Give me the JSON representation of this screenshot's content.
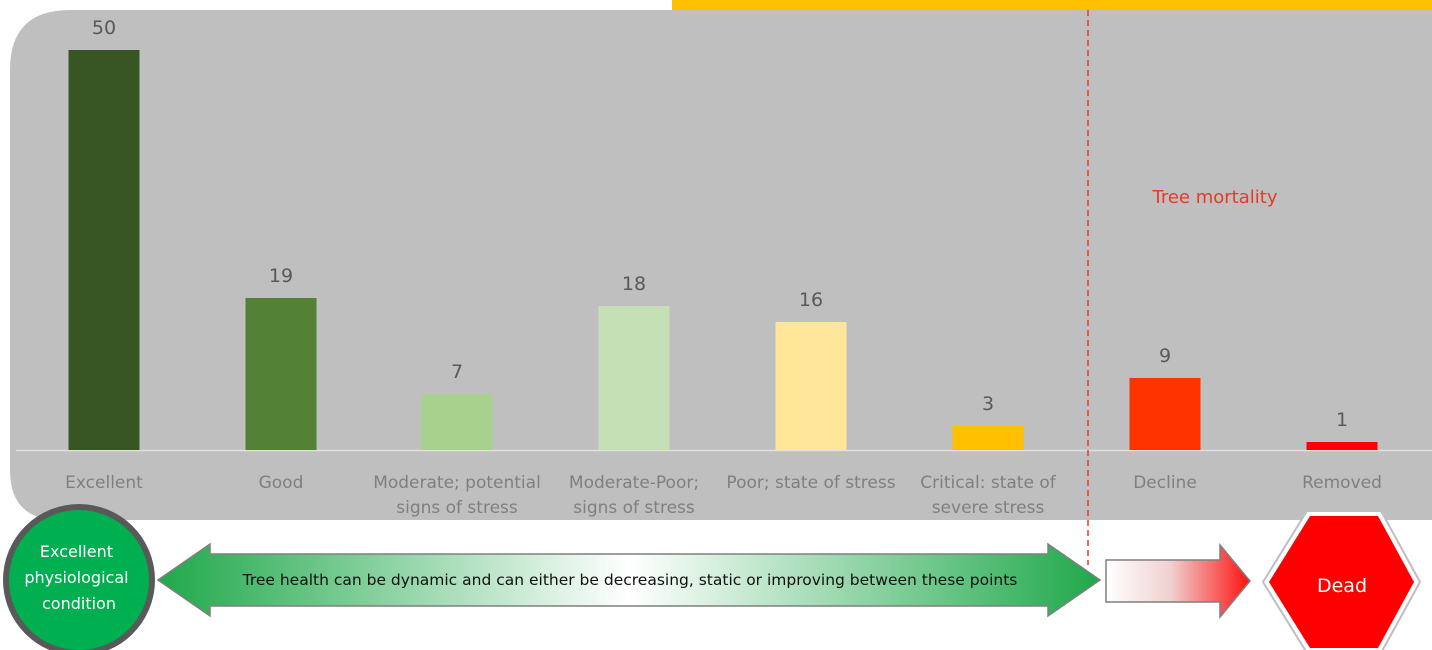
{
  "chart_data": {
    "type": "bar",
    "categories": [
      [
        "Excellent"
      ],
      [
        "Good"
      ],
      [
        "Moderate; potential",
        "signs of stress"
      ],
      [
        "Moderate-Poor;",
        "signs of stress"
      ],
      [
        "Poor; state of stress"
      ],
      [
        "Critical: state of",
        "severe stress"
      ],
      [
        "Decline"
      ],
      [
        "Removed"
      ]
    ],
    "values": [
      50,
      19,
      7,
      18,
      16,
      3,
      9,
      1
    ],
    "bar_colors": [
      "#375623",
      "#538135",
      "#a9d18e",
      "#c5e0b4",
      "#ffe699",
      "#ffc000",
      "#ff3300",
      "#ff0000"
    ],
    "ylim": [
      0,
      50
    ],
    "grid": false
  },
  "annotations": {
    "mortality_label": "Tree mortality",
    "excellent_circle": [
      "Excellent",
      "physiological",
      "condition"
    ],
    "dynamic_arrow": "Tree health can be dynamic and can either be decreasing, static or improving between these points",
    "dead_label": "Dead"
  },
  "colors": {
    "panel": "#bfbfbf",
    "banner": "#ffc000",
    "circle": "#00b050",
    "dead": "#ff0000",
    "mortality_line": "#e8382a"
  }
}
